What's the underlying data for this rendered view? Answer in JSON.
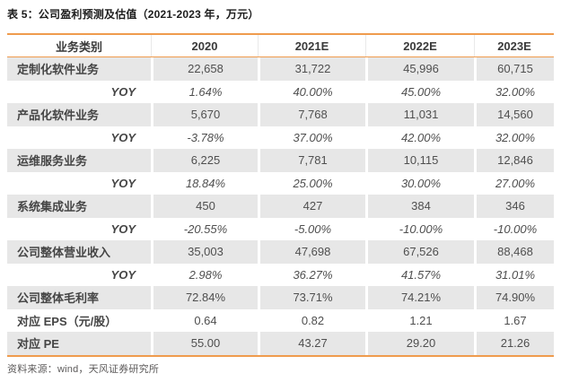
{
  "page": {
    "title": "表 5：公司盈利预测及估值（2021-2023 年，万元）",
    "source_note": "资料来源：wind，天风证券研究所"
  },
  "colors": {
    "accent_orange": "#EF9B4D",
    "row_band_gray": "#E7E7E7",
    "text_gray": "#4C4C4C"
  },
  "table": {
    "headers": [
      "业务类别",
      "2020",
      "2021E",
      "2022E",
      "2023E"
    ],
    "rows": [
      {
        "label": "定制化软件业务",
        "yoy": false,
        "values": [
          "22,658",
          "31,722",
          "45,996",
          "60,715"
        ]
      },
      {
        "label": "YOY",
        "yoy": true,
        "values": [
          "1.64%",
          "40.00%",
          "45.00%",
          "32.00%"
        ]
      },
      {
        "label": "产品化软件业务",
        "yoy": false,
        "values": [
          "5,670",
          "7,768",
          "11,031",
          "14,560"
        ]
      },
      {
        "label": "YOY",
        "yoy": true,
        "values": [
          "-3.78%",
          "37.00%",
          "42.00%",
          "32.00%"
        ]
      },
      {
        "label": "运维服务业务",
        "yoy": false,
        "values": [
          "6,225",
          "7,781",
          "10,115",
          "12,846"
        ]
      },
      {
        "label": "YOY",
        "yoy": true,
        "values": [
          "18.84%",
          "25.00%",
          "30.00%",
          "27.00%"
        ]
      },
      {
        "label": "系统集成业务",
        "yoy": false,
        "values": [
          "450",
          "427",
          "384",
          "346"
        ]
      },
      {
        "label": "YOY",
        "yoy": true,
        "values": [
          "-20.55%",
          "-5.00%",
          "-10.00%",
          "-10.00%"
        ]
      },
      {
        "label": "公司整体营业收入",
        "yoy": false,
        "values": [
          "35,003",
          "47,698",
          "67,526",
          "88,468"
        ]
      },
      {
        "label": "YOY",
        "yoy": true,
        "values": [
          "2.98%",
          "36.27%",
          "41.57%",
          "31.01%"
        ]
      },
      {
        "label": "公司整体毛利率",
        "yoy": false,
        "values": [
          "72.84%",
          "73.71%",
          "74.21%",
          "74.90%"
        ]
      },
      {
        "label": "对应 EPS（元/股）",
        "yoy": false,
        "values": [
          "0.64",
          "0.82",
          "1.21",
          "1.67"
        ]
      },
      {
        "label": "对应 PE",
        "yoy": false,
        "values": [
          "55.00",
          "43.27",
          "29.20",
          "21.26"
        ]
      }
    ]
  }
}
